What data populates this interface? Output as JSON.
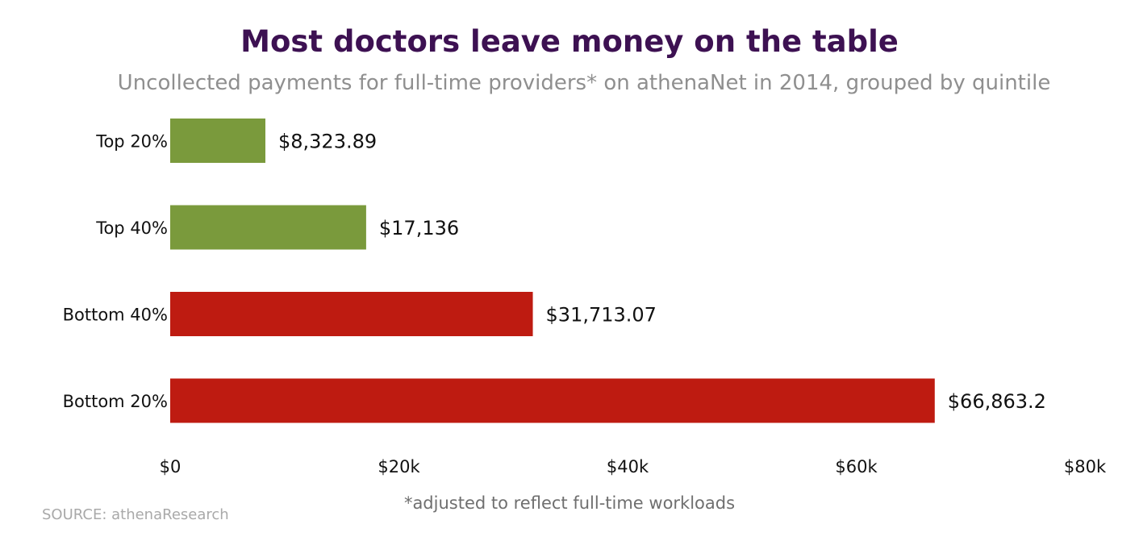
{
  "chart_data": {
    "type": "bar",
    "orientation": "horizontal",
    "title": "Most doctors leave money on the table",
    "subtitle": "Uncollected payments for full-time providers* on athenaNet in 2014, grouped by quintile",
    "categories": [
      "Top 20%",
      "Top 40%",
      "Bottom 40%",
      "Bottom 20%"
    ],
    "values": [
      8323.89,
      17136,
      31713.07,
      66863.2
    ],
    "value_labels": [
      "$8,323.89",
      "$17,136",
      "$31,713.07",
      "$66,863.2"
    ],
    "bar_colors": [
      "#7a9a3c",
      "#7a9a3c",
      "#be1b11",
      "#be1b11"
    ],
    "xlim": [
      0,
      80000
    ],
    "x_ticks": [
      0,
      20000,
      40000,
      60000,
      80000
    ],
    "x_tick_labels": [
      "$0",
      "$20k",
      "$40k",
      "$60k",
      "$80k"
    ],
    "xlabel": "",
    "ylabel": "",
    "grid": false,
    "legend": "none"
  },
  "footer": {
    "note": "*adjusted to reflect full-time workloads",
    "source": "SOURCE: athenaResearch"
  }
}
